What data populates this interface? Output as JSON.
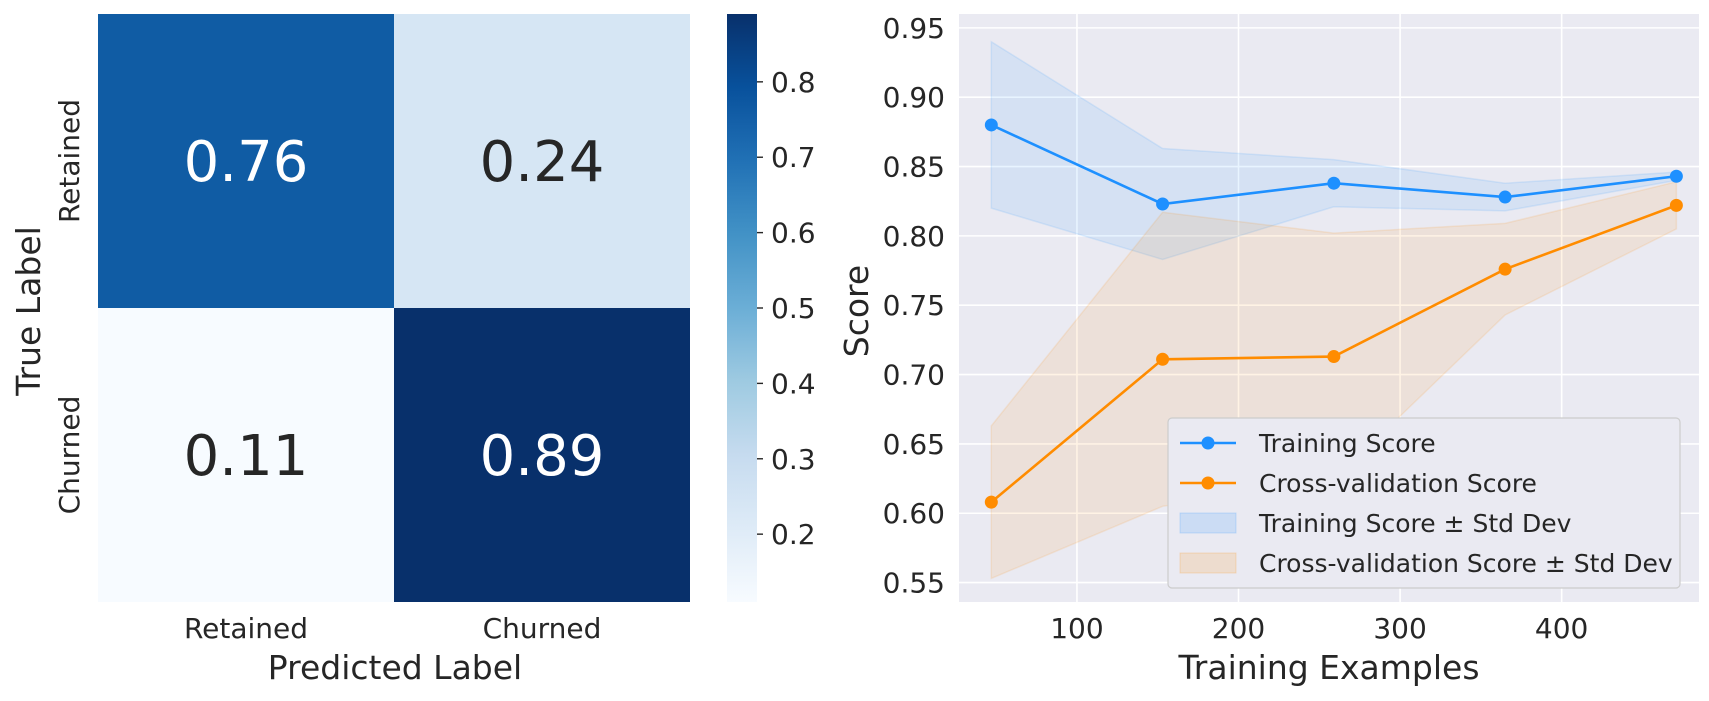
{
  "chart_data": [
    {
      "type": "heatmap",
      "title": "",
      "xlabel": "Predicted Label",
      "ylabel": "True Label",
      "x_categories": [
        "Retained",
        "Churned"
      ],
      "y_categories": [
        "Retained",
        "Churned"
      ],
      "values": [
        [
          0.76,
          0.24
        ],
        [
          0.11,
          0.89
        ]
      ],
      "value_labels": [
        [
          "0.76",
          "0.24"
        ],
        [
          "0.11",
          "0.89"
        ]
      ],
      "colormap": "Blues",
      "colorbar": {
        "range": [
          0.11,
          0.89
        ],
        "ticks": [
          0.2,
          0.3,
          0.4,
          0.5,
          0.6,
          0.7,
          0.8
        ],
        "tick_labels": [
          "0.2",
          "0.3",
          "0.4",
          "0.5",
          "0.6",
          "0.7",
          "0.8"
        ]
      }
    },
    {
      "type": "line",
      "title": "",
      "xlabel": "Training Examples",
      "ylabel": "Score",
      "xlim": [
        27,
        485
      ],
      "ylim": [
        0.536,
        0.96
      ],
      "xticks": [
        100,
        200,
        300,
        400
      ],
      "xtick_labels": [
        "100",
        "200",
        "300",
        "400"
      ],
      "yticks": [
        0.55,
        0.6,
        0.65,
        0.7,
        0.75,
        0.8,
        0.85,
        0.9,
        0.95
      ],
      "ytick_labels": [
        "0.55",
        "0.60",
        "0.65",
        "0.70",
        "0.75",
        "0.80",
        "0.85",
        "0.90",
        "0.95"
      ],
      "grid": true,
      "background": "#eaeaf2",
      "legend_position": "lower-right",
      "x": [
        47,
        153,
        259,
        365,
        471
      ],
      "series": [
        {
          "name": "Training Score",
          "color": "#1e90ff",
          "values": [
            0.88,
            0.823,
            0.838,
            0.828,
            0.843
          ]
        },
        {
          "name": "Cross-validation Score",
          "color": "#ff8c00",
          "values": [
            0.608,
            0.711,
            0.713,
            0.776,
            0.822
          ]
        }
      ],
      "bands": [
        {
          "name": "Training Score ± Std Dev",
          "color": "#1e90ff",
          "lower": [
            0.82,
            0.783,
            0.821,
            0.818,
            0.84
          ],
          "upper": [
            0.94,
            0.863,
            0.855,
            0.838,
            0.846
          ]
        },
        {
          "name": "Cross-validation Score ± Std Dev",
          "color": "#ff8c00",
          "lower": [
            0.553,
            0.605,
            0.624,
            0.743,
            0.805
          ],
          "upper": [
            0.663,
            0.817,
            0.802,
            0.809,
            0.839
          ]
        }
      ]
    }
  ]
}
